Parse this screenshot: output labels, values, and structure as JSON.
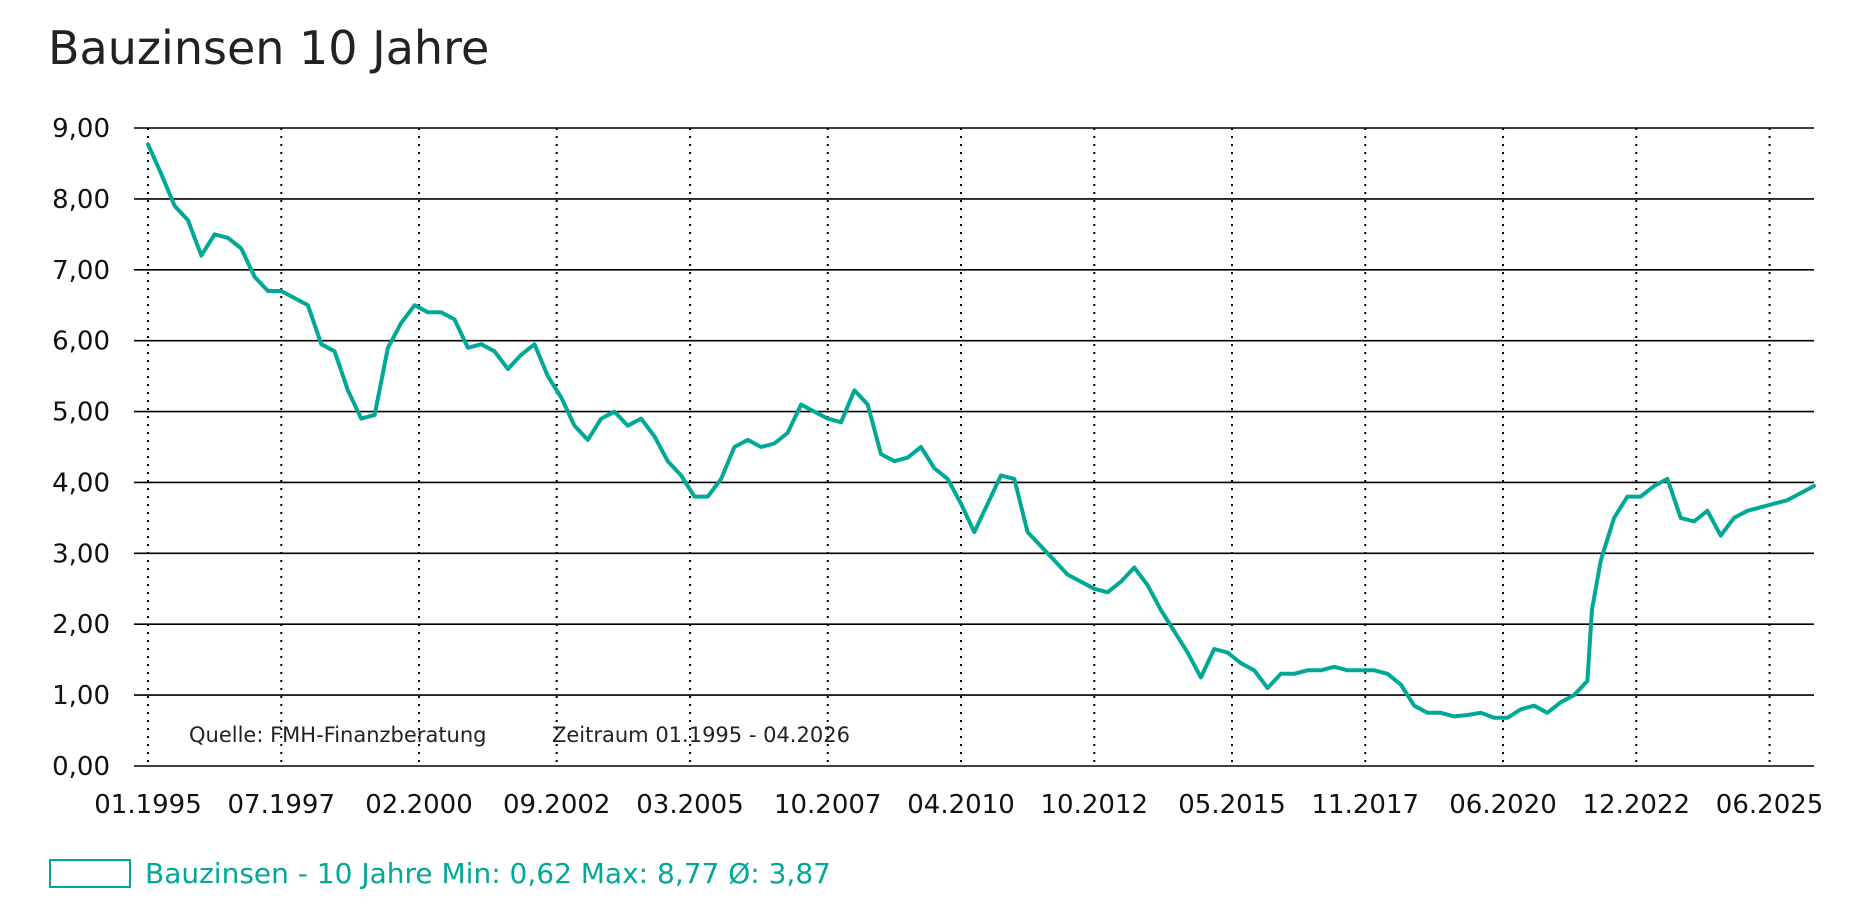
{
  "chart_data": {
    "type": "line",
    "title": "Bauzinsen 10 Jahre",
    "xlabel": "",
    "ylabel": "",
    "ylim": [
      0,
      9
    ],
    "xlim": [
      "1995-01",
      "2026-04"
    ],
    "grid": true,
    "y_ticks": [
      "0,00",
      "1,00",
      "2,00",
      "3,00",
      "4,00",
      "5,00",
      "6,00",
      "7,00",
      "8,00",
      "9,00"
    ],
    "x_ticks": [
      "01.1995",
      "07.1997",
      "02.2000",
      "09.2002",
      "03.2005",
      "10.2007",
      "04.2010",
      "10.2012",
      "05.2015",
      "11.2017",
      "06.2020",
      "12.2022",
      "06.2025"
    ],
    "source_note": "Quelle: FMH-Finanzberatung",
    "period_note": "Zeitraum 01.1995 - 04.2026",
    "legend_position": "bottom-left",
    "legend_label": "Bauzinsen - 10 Jahre Min: 0,62 Max: 8,77 Ø: 3,87",
    "series": [
      {
        "name": "Bauzinsen - 10 Jahre",
        "color": "#00a896",
        "x": [
          "1995-01",
          "1995-04",
          "1995-07",
          "1995-10",
          "1996-01",
          "1996-04",
          "1996-07",
          "1996-10",
          "1997-01",
          "1997-04",
          "1997-07",
          "1997-10",
          "1998-01",
          "1998-04",
          "1998-07",
          "1998-10",
          "1999-01",
          "1999-04",
          "1999-07",
          "1999-10",
          "2000-01",
          "2000-04",
          "2000-07",
          "2000-10",
          "2001-01",
          "2001-04",
          "2001-07",
          "2001-10",
          "2002-01",
          "2002-04",
          "2002-07",
          "2002-10",
          "2003-01",
          "2003-04",
          "2003-07",
          "2003-10",
          "2004-01",
          "2004-04",
          "2004-07",
          "2004-10",
          "2005-01",
          "2005-04",
          "2005-07",
          "2005-10",
          "2006-01",
          "2006-04",
          "2006-07",
          "2006-10",
          "2007-01",
          "2007-04",
          "2007-07",
          "2007-10",
          "2008-01",
          "2008-04",
          "2008-07",
          "2008-10",
          "2009-01",
          "2009-04",
          "2009-07",
          "2009-10",
          "2010-01",
          "2010-04",
          "2010-07",
          "2010-10",
          "2011-01",
          "2011-04",
          "2011-07",
          "2011-10",
          "2012-01",
          "2012-04",
          "2012-07",
          "2012-10",
          "2013-01",
          "2013-04",
          "2013-07",
          "2013-10",
          "2014-01",
          "2014-04",
          "2014-07",
          "2014-10",
          "2015-01",
          "2015-04",
          "2015-07",
          "2015-10",
          "2016-01",
          "2016-04",
          "2016-07",
          "2016-10",
          "2017-01",
          "2017-04",
          "2017-07",
          "2017-10",
          "2018-01",
          "2018-04",
          "2018-07",
          "2018-10",
          "2019-01",
          "2019-04",
          "2019-07",
          "2019-10",
          "2020-01",
          "2020-04",
          "2020-07",
          "2020-10",
          "2021-01",
          "2021-04",
          "2021-07",
          "2021-10",
          "2022-01",
          "2022-02",
          "2022-04",
          "2022-07",
          "2022-10",
          "2023-01",
          "2023-04",
          "2023-07",
          "2023-10",
          "2024-01",
          "2024-04",
          "2024-07",
          "2024-10",
          "2025-01",
          "2025-04",
          "2025-07",
          "2025-10",
          "2026-01",
          "2026-04"
        ],
        "values": [
          8.77,
          8.35,
          7.9,
          7.7,
          7.2,
          7.5,
          7.45,
          7.3,
          6.9,
          6.7,
          6.7,
          6.6,
          6.5,
          5.95,
          5.85,
          5.3,
          4.9,
          4.95,
          5.9,
          6.25,
          6.5,
          6.4,
          6.4,
          6.3,
          5.9,
          5.95,
          5.85,
          5.6,
          5.8,
          5.95,
          5.5,
          5.2,
          4.8,
          4.6,
          4.9,
          5.0,
          4.8,
          4.9,
          4.65,
          4.3,
          4.1,
          3.8,
          3.8,
          4.05,
          4.5,
          4.6,
          4.5,
          4.55,
          4.7,
          5.1,
          5.0,
          4.9,
          4.85,
          5.3,
          5.1,
          4.4,
          4.3,
          4.35,
          4.5,
          4.2,
          4.05,
          3.7,
          3.3,
          3.7,
          4.1,
          4.05,
          3.3,
          3.1,
          2.9,
          2.7,
          2.6,
          2.5,
          2.45,
          2.6,
          2.8,
          2.55,
          2.2,
          1.9,
          1.6,
          1.25,
          1.65,
          1.6,
          1.45,
          1.35,
          1.1,
          1.3,
          1.3,
          1.35,
          1.35,
          1.4,
          1.35,
          1.35,
          1.35,
          1.3,
          1.15,
          0.85,
          0.75,
          0.75,
          0.7,
          0.72,
          0.75,
          0.68,
          0.68,
          0.8,
          0.85,
          0.75,
          0.9,
          1.0,
          1.2,
          2.2,
          2.9,
          3.5,
          3.8,
          3.8,
          3.95,
          4.05,
          3.5,
          3.45,
          3.6,
          3.25,
          3.5,
          3.6,
          3.65,
          3.7,
          3.75,
          3.85,
          3.95
        ]
      }
    ]
  }
}
